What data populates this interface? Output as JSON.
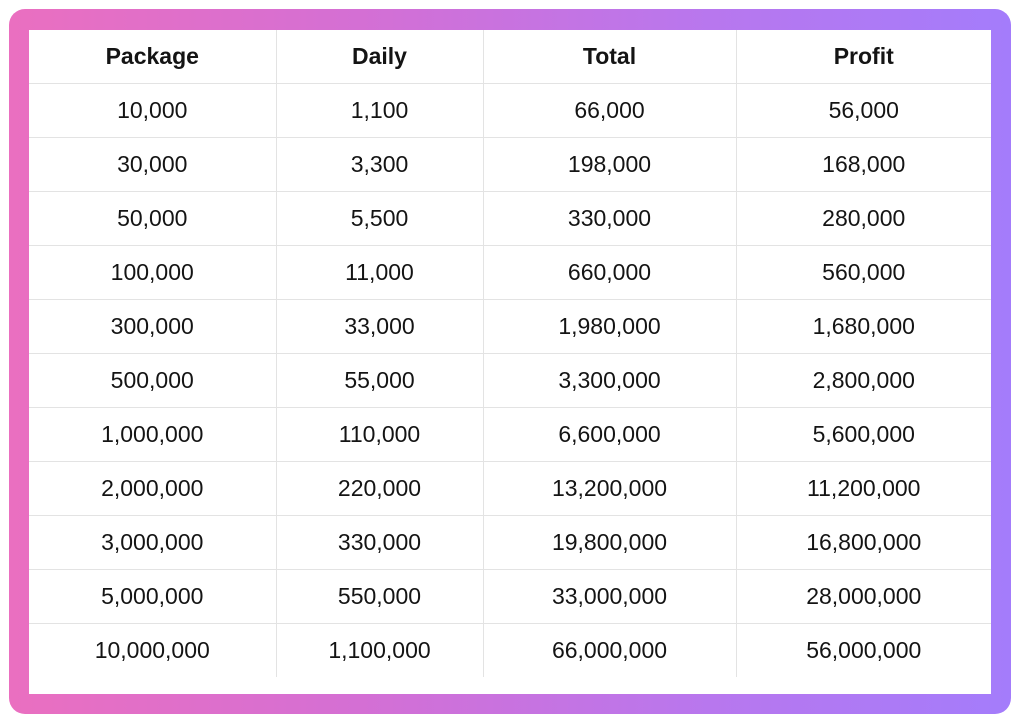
{
  "table": {
    "headers": [
      "Package",
      "Daily",
      "Total",
      "Profit"
    ],
    "rows": [
      [
        "10,000",
        "1,100",
        "66,000",
        "56,000"
      ],
      [
        "30,000",
        "3,300",
        "198,000",
        "168,000"
      ],
      [
        "50,000",
        "5,500",
        "330,000",
        "280,000"
      ],
      [
        "100,000",
        "11,000",
        "660,000",
        "560,000"
      ],
      [
        "300,000",
        "33,000",
        "1,980,000",
        "1,680,000"
      ],
      [
        "500,000",
        "55,000",
        "3,300,000",
        "2,800,000"
      ],
      [
        "1,000,000",
        "110,000",
        "6,600,000",
        "5,600,000"
      ],
      [
        "2,000,000",
        "220,000",
        "13,200,000",
        "11,200,000"
      ],
      [
        "3,000,000",
        "330,000",
        "19,800,000",
        "16,800,000"
      ],
      [
        "5,000,000",
        "550,000",
        "33,000,000",
        "28,000,000"
      ],
      [
        "10,000,000",
        "1,100,000",
        "66,000,000",
        "56,000,000"
      ]
    ]
  },
  "colors": {
    "frame_gradient_start": "#ea6fc0",
    "frame_gradient_end": "#a47cfb",
    "grid_line": "#e3e3e3"
  }
}
